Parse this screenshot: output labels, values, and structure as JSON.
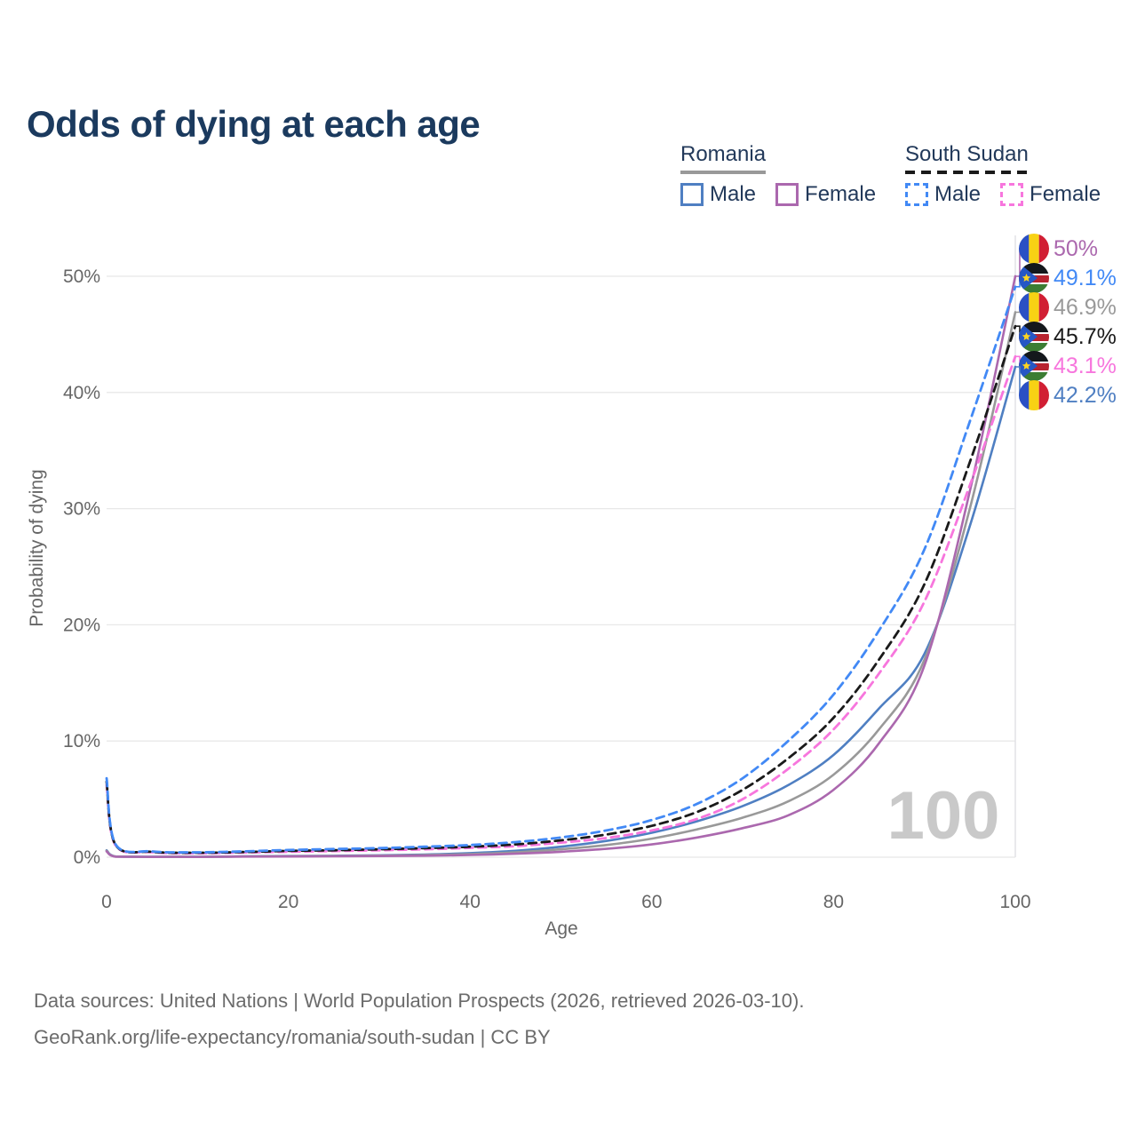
{
  "title": "Odds of dying at each age",
  "legend": {
    "groups": [
      {
        "name": "Romania",
        "underline_style": "solid",
        "underline_series": "ro-total",
        "items": [
          {
            "label": "Male",
            "series": "ro-male"
          },
          {
            "label": "Female",
            "series": "ro-female"
          }
        ]
      },
      {
        "name": "South Sudan",
        "underline_style": "dashed",
        "underline_series": "ss-total",
        "items": [
          {
            "label": "Male",
            "series": "ss-male"
          },
          {
            "label": "Female",
            "series": "ss-female"
          }
        ]
      }
    ]
  },
  "chart_data": {
    "type": "line",
    "title": "Odds of dying at each age",
    "xlabel": "Age",
    "ylabel": "Probability of dying",
    "xlim": [
      0,
      100
    ],
    "ylim": [
      0,
      52
    ],
    "x_ticks": [
      0,
      20,
      40,
      60,
      80,
      100
    ],
    "y_tick_values": [
      0,
      10,
      20,
      30,
      40,
      50
    ],
    "y_tick_labels": [
      "0%",
      "10%",
      "20%",
      "30%",
      "40%",
      "50%"
    ],
    "grid": "horizontal",
    "legend_position": "top-right",
    "hover_age_watermark": "100",
    "x": [
      0,
      1,
      5,
      10,
      15,
      20,
      25,
      30,
      35,
      40,
      45,
      50,
      55,
      60,
      65,
      70,
      75,
      80,
      85,
      90,
      95,
      100
    ],
    "series": [
      {
        "id": "ro-male",
        "name": "Romania Male",
        "country": "romania",
        "sex": "male",
        "color": "#4f7fc2",
        "dash": false,
        "values": [
          0.6,
          0.06,
          0.03,
          0.03,
          0.07,
          0.1,
          0.12,
          0.16,
          0.23,
          0.35,
          0.55,
          0.9,
          1.4,
          2.1,
          3.1,
          4.4,
          6.2,
          8.8,
          12.8,
          17.5,
          28.5,
          42.2
        ],
        "end_label": "42.2%"
      },
      {
        "id": "ro-total",
        "name": "Romania Both sexes",
        "country": "romania",
        "sex": "total",
        "color": "#999999",
        "dash": false,
        "values": [
          0.55,
          0.05,
          0.025,
          0.025,
          0.06,
          0.08,
          0.1,
          0.13,
          0.18,
          0.27,
          0.42,
          0.68,
          1.05,
          1.6,
          2.4,
          3.4,
          4.8,
          7.1,
          11.0,
          17.0,
          30.0,
          46.9
        ],
        "end_label": "46.9%"
      },
      {
        "id": "ro-female",
        "name": "Romania Female",
        "country": "romania",
        "sex": "female",
        "color": "#ab68ae",
        "dash": false,
        "values": [
          0.5,
          0.045,
          0.02,
          0.02,
          0.05,
          0.06,
          0.08,
          0.1,
          0.13,
          0.19,
          0.3,
          0.47,
          0.72,
          1.1,
          1.7,
          2.5,
          3.6,
          5.8,
          9.8,
          16.5,
          31.5,
          50.0
        ],
        "end_label": "50%"
      },
      {
        "id": "ss-female",
        "name": "South Sudan Female",
        "country": "south-sudan",
        "sex": "female",
        "color": "#f776dd",
        "dash": true,
        "values": [
          6.2,
          1.0,
          0.43,
          0.34,
          0.4,
          0.47,
          0.53,
          0.6,
          0.68,
          0.8,
          0.95,
          1.25,
          1.65,
          2.3,
          3.3,
          5.0,
          7.6,
          11.0,
          15.8,
          22.0,
          32.0,
          43.1
        ],
        "end_label": "43.1%"
      },
      {
        "id": "ss-total",
        "name": "South Sudan Both sexes",
        "country": "south-sudan",
        "sex": "total",
        "color": "#1a1a1a",
        "dash": true,
        "values": [
          6.5,
          1.05,
          0.46,
          0.38,
          0.44,
          0.54,
          0.6,
          0.68,
          0.78,
          0.9,
          1.1,
          1.45,
          1.95,
          2.7,
          3.9,
          5.8,
          8.5,
          12.0,
          17.0,
          23.5,
          34.0,
          45.7
        ],
        "end_label": "45.7%"
      },
      {
        "id": "ss-male",
        "name": "South Sudan Male",
        "country": "south-sudan",
        "sex": "male",
        "color": "#4289f5",
        "dash": true,
        "values": [
          6.8,
          1.1,
          0.5,
          0.42,
          0.5,
          0.62,
          0.7,
          0.78,
          0.9,
          1.05,
          1.3,
          1.7,
          2.3,
          3.2,
          4.6,
          6.8,
          10.0,
          14.0,
          19.5,
          26.5,
          37.5,
          49.1
        ],
        "end_label": "49.1%"
      }
    ]
  },
  "icons": {
    "romania_flag": {
      "blue": "#2a50c4",
      "yellow": "#f8d214",
      "red": "#d11f33"
    },
    "south_sudan_flag": {
      "black": "#14181c",
      "white": "#ffffff",
      "red": "#b8232f",
      "green": "#3c7d33",
      "blue": "#2657c4",
      "star": "#ffd520"
    }
  },
  "colors": {
    "title_text": "#1b3a5e",
    "legend_text": "#22395a",
    "axis_text": "#666666",
    "gridline": "#e8e8e8",
    "hover_line": "#e2e2e6",
    "watermark": "#c9c9c9",
    "footer_text": "#6b6b6b"
  },
  "footer": {
    "line1": "Data sources: United Nations | World Population Prospects (2026, retrieved 2026-03-10).",
    "line2": "GeoRank.org/life-expectancy/romania/south-sudan | CC BY"
  }
}
